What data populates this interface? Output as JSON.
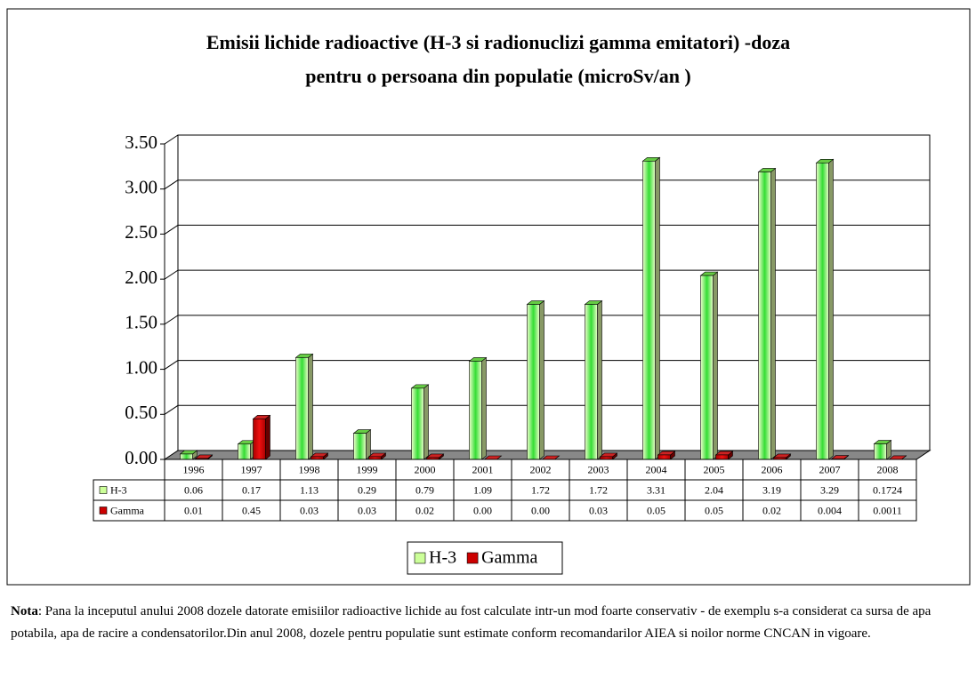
{
  "chart_data": {
    "type": "bar",
    "title": "Emisii lichide radioactive (H-3 si radionuclizi gamma emitatori) -doza pentru o persoana din populatie (microSv/an )",
    "categories": [
      "1996",
      "1997",
      "1998",
      "1999",
      "2000",
      "2001",
      "2002",
      "2003",
      "2004",
      "2005",
      "2006",
      "2007",
      "2008"
    ],
    "series": [
      {
        "name": "H-3",
        "color": "#ccff99",
        "values": [
          0.06,
          0.17,
          1.13,
          0.29,
          0.79,
          1.09,
          1.72,
          1.72,
          3.31,
          2.04,
          3.19,
          3.29,
          0.1724
        ],
        "value_labels": [
          "0.06",
          "0.17",
          "1.13",
          "0.29",
          "0.79",
          "1.09",
          "1.72",
          "1.72",
          "3.31",
          "2.04",
          "3.19",
          "3.29",
          "0.1724"
        ]
      },
      {
        "name": "Gamma",
        "color": "#cc0000",
        "values": [
          0.01,
          0.45,
          0.03,
          0.03,
          0.02,
          0,
          0,
          0.03,
          0.05,
          0.05,
          0.02,
          0.004,
          0.0011
        ],
        "value_labels": [
          "0.01",
          "0.45",
          "0.03",
          "0.03",
          "0.02",
          "0.00",
          "0.00",
          "0.03",
          "0.05",
          "0.05",
          "0.02",
          "0.004",
          "0.0011"
        ]
      }
    ],
    "ylim": [
      0,
      3.5
    ],
    "yticks": [
      {
        "value": 0,
        "label": "0.00"
      },
      {
        "value": 0.5,
        "label": "0.50"
      },
      {
        "value": 1,
        "label": "1.00"
      },
      {
        "value": 1.5,
        "label": "1.50"
      },
      {
        "value": 2,
        "label": "2.00"
      },
      {
        "value": 2.5,
        "label": "2.50"
      },
      {
        "value": 3,
        "label": "3.00"
      },
      {
        "value": 3.5,
        "label": "3.50"
      }
    ],
    "grid": true
  },
  "note": {
    "label": "Nota",
    "text": ": Pana  la inceputul anului 2008 dozele datorate emisiilor radioactive lichide au fost calculate intr-un mod foarte conservativ - de exemplu s-a considerat ca sursa de apa potabila, apa de racire a condensatorilor.Din anul 2008, dozele pentru populatie sunt estimate conform recomandarilor AIEA si noilor norme CNCAN in vigoare."
  }
}
